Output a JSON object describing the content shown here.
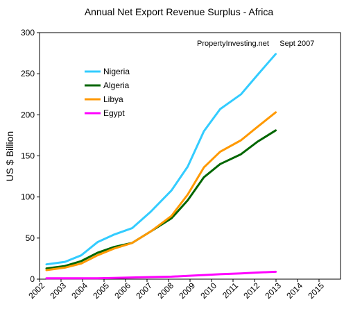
{
  "chart_data": {
    "type": "line",
    "title": "Annual Net Export Revenue Surplus - Africa",
    "annotation": "PropertyInvesting.net     Sept 2007",
    "ylabel": "US $ Billion",
    "xlabel": "",
    "ylim": [
      0,
      300
    ],
    "yticks": [
      0,
      50,
      100,
      150,
      200,
      250,
      300
    ],
    "xticks": [
      "2002",
      "2003",
      "2004",
      "2005",
      "2006",
      "2007",
      "2008",
      "2009",
      "2010",
      "2011",
      "2012",
      "2013",
      "2014",
      "2015"
    ],
    "grid": false,
    "legend": "upper-left-inside",
    "x": [
      2002.5,
      2003.3,
      2004,
      2004.7,
      2005.4,
      2006.2,
      2007,
      2007.9,
      2008.6,
      2009.3,
      2010,
      2010.9,
      2011.6,
      2012.4,
      2013.2,
      2014,
      2014.9
    ],
    "series": [
      {
        "name": "Nigeria",
        "color": "#33ccff",
        "values": [
          18,
          21,
          29,
          45,
          54,
          62,
          82,
          108,
          137,
          180,
          207,
          225,
          248,
          274,
          null,
          null,
          null
        ]
      },
      {
        "name": "Algeria",
        "color": "#006600",
        "values": [
          13,
          16,
          22,
          32,
          39,
          44,
          58,
          74,
          96,
          124,
          140,
          152,
          167,
          181,
          null,
          null,
          null
        ]
      },
      {
        "name": "Libya",
        "color": "#ff9900",
        "values": [
          11,
          14,
          19,
          29,
          37,
          44,
          58,
          77,
          103,
          136,
          155,
          169,
          185,
          203,
          null,
          null,
          null
        ]
      },
      {
        "name": "Egypt",
        "color": "#ff00ff",
        "values": [
          1,
          1,
          1,
          1,
          1.5,
          2,
          2.5,
          3,
          4,
          5,
          6,
          7,
          8,
          9,
          null,
          null,
          null
        ]
      }
    ]
  }
}
